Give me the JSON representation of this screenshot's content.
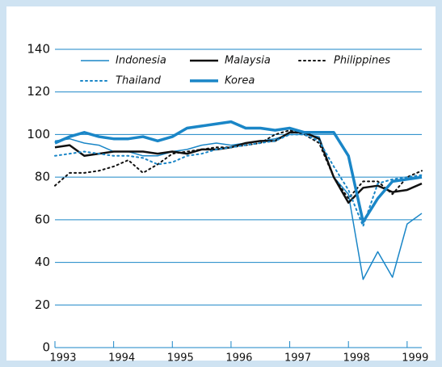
{
  "chart_data": {
    "type": "line",
    "xlim": [
      1993,
      1999.25
    ],
    "xticks": [
      1993,
      1994,
      1995,
      1996,
      1997,
      1998,
      1999
    ],
    "ylim": [
      0,
      140
    ],
    "yticks": [
      0,
      20,
      40,
      60,
      80,
      100,
      120,
      140
    ],
    "grid": true,
    "x": [
      1993,
      1993.25,
      1993.5,
      1993.75,
      1994,
      1994.25,
      1994.5,
      1994.75,
      1995,
      1995.25,
      1995.5,
      1995.75,
      1996,
      1996.25,
      1996.5,
      1996.75,
      1997,
      1997.25,
      1997.5,
      1997.75,
      1998,
      1998.25,
      1998.5,
      1998.75,
      1999,
      1999.25
    ],
    "series": [
      {
        "name": "Indonesia",
        "color": "#1a86c7",
        "width": 1.5,
        "dash": "solid",
        "values": [
          97,
          98,
          96,
          95,
          92,
          92,
          90,
          90,
          92,
          93,
          95,
          96,
          95,
          96,
          97,
          98,
          100,
          100,
          99,
          80,
          72,
          32,
          45,
          33,
          58,
          63
        ]
      },
      {
        "name": "Malaysia",
        "color": "#111111",
        "width": 2.5,
        "dash": "solid",
        "values": [
          94,
          95,
          90,
          91,
          92,
          92,
          92,
          91,
          92,
          91,
          93,
          93,
          94,
          96,
          97,
          97,
          101,
          101,
          98,
          80,
          68,
          75,
          76,
          73,
          74,
          77
        ]
      },
      {
        "name": "Philippines",
        "color": "#111111",
        "width": 2,
        "dash": "dotted",
        "values": [
          76,
          82,
          82,
          83,
          85,
          88,
          82,
          86,
          91,
          92,
          93,
          94,
          94,
          95,
          96,
          100,
          102,
          100,
          96,
          80,
          70,
          78,
          78,
          72,
          80,
          83
        ]
      },
      {
        "name": "Thailand",
        "color": "#1a86c7",
        "width": 2,
        "dash": "dotted",
        "values": [
          90,
          91,
          92,
          91,
          90,
          90,
          89,
          86,
          87,
          90,
          91,
          93,
          94,
          95,
          96,
          97,
          100,
          100,
          97,
          85,
          74,
          57,
          77,
          79,
          80,
          81
        ]
      },
      {
        "name": "Korea",
        "color": "#1a86c7",
        "width": 3.5,
        "dash": "solid",
        "values": [
          96,
          99,
          101,
          99,
          98,
          98,
          99,
          97,
          99,
          103,
          104,
          105,
          106,
          103,
          103,
          102,
          103,
          101,
          101,
          101,
          90,
          59,
          70,
          78,
          79,
          80
        ]
      }
    ]
  }
}
